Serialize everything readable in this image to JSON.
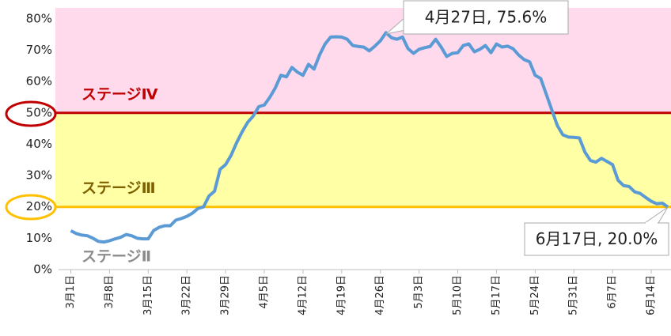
{
  "chart_data": {
    "type": "line",
    "categories": [
      "3月1日",
      null,
      null,
      null,
      null,
      null,
      null,
      "3月8日",
      null,
      null,
      null,
      null,
      null,
      null,
      "3月15日",
      null,
      null,
      null,
      null,
      null,
      null,
      "3月22日",
      null,
      null,
      null,
      null,
      null,
      null,
      "3月29日",
      null,
      null,
      null,
      null,
      null,
      null,
      "4月5日",
      null,
      null,
      null,
      null,
      null,
      null,
      "4月12日",
      null,
      null,
      null,
      null,
      null,
      null,
      "4月19日",
      null,
      null,
      null,
      null,
      null,
      null,
      "4月26日",
      null,
      null,
      null,
      null,
      null,
      null,
      "5月3日",
      null,
      null,
      null,
      null,
      null,
      null,
      "5月10日",
      null,
      null,
      null,
      null,
      null,
      null,
      "5月17日",
      null,
      null,
      null,
      null,
      null,
      null,
      "5月24日",
      null,
      null,
      null,
      null,
      null,
      null,
      "5月31日",
      null,
      null,
      null,
      null,
      null,
      null,
      "6月7日",
      null,
      null,
      null,
      null,
      null,
      null,
      "6月14日",
      null,
      null,
      null
    ],
    "series": [
      {
        "name": null,
        "color": "#5b9bd5",
        "values": [
          12.4,
          11.5,
          11,
          10.8,
          10,
          9,
          8.8,
          9.2,
          9.8,
          10.3,
          11.2,
          10.8,
          10,
          9.8,
          9.8,
          12.5,
          13.5,
          14,
          14,
          15.8,
          16.3,
          17,
          18,
          19.5,
          20,
          23.5,
          25,
          32,
          33.5,
          36.5,
          40.5,
          44,
          47,
          49,
          52,
          52.5,
          55,
          58,
          62,
          61.5,
          64.5,
          63,
          62,
          65.5,
          64,
          68.5,
          72,
          74.2,
          74.3,
          74.2,
          73.5,
          71.5,
          71.2,
          71,
          69.8,
          71.3,
          73,
          75.6,
          74,
          73.5,
          74.2,
          70.5,
          69,
          70.3,
          70.8,
          71.2,
          73.5,
          71,
          68,
          69,
          69.2,
          71.5,
          72,
          69.5,
          70.3,
          71.5,
          69.2,
          72,
          71,
          71.3,
          70.5,
          68.5,
          67,
          66.3,
          62,
          61,
          56,
          51,
          46,
          43,
          42.3,
          42.2,
          42,
          37.5,
          34.8,
          34.3,
          35.5,
          34.5,
          33.5,
          28.5,
          26.8,
          26.5,
          24.8,
          24.3,
          23,
          21.8,
          21,
          21.2,
          20.0
        ]
      }
    ],
    "ylim": [
      0,
      83.5
    ],
    "yticks": [
      {
        "value": 0,
        "label": "0%"
      },
      {
        "value": 10,
        "label": "10%"
      },
      {
        "value": 20,
        "label": "20%"
      },
      {
        "value": 30,
        "label": "30%"
      },
      {
        "value": 40,
        "label": "40%"
      },
      {
        "value": 50,
        "label": "50%"
      },
      {
        "value": 60,
        "label": "60%"
      },
      {
        "value": 70,
        "label": "70%"
      },
      {
        "value": 80,
        "label": "80%"
      }
    ],
    "thresholds": [
      {
        "value": 50,
        "color": "#c00000",
        "band_color": "#ffd9ec",
        "label": "ステージⅣ"
      },
      {
        "value": 20,
        "color": "#ffc000",
        "band_color": "#ffffa6",
        "label": "ステージⅢ",
        "label_color": "#7f6000"
      }
    ],
    "annotations": [
      "4月27日, 75.6%",
      "6月17日, 20.0%",
      "ステージⅡ"
    ]
  }
}
